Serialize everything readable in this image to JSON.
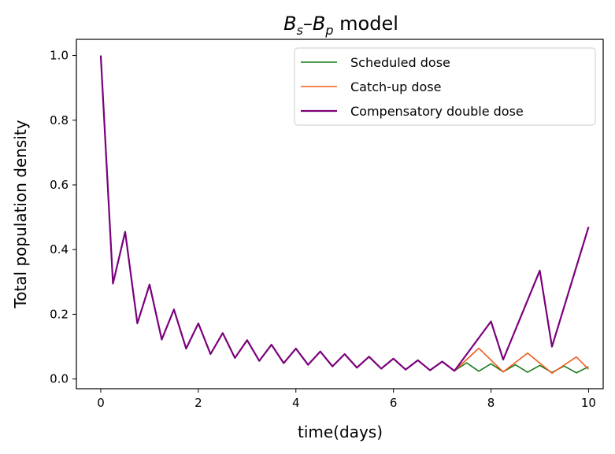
{
  "chart_data": {
    "type": "line",
    "title": {
      "b1": "B",
      "s1": "s",
      "dash": "–",
      "b2": "B",
      "s2": "p",
      "rest": " model"
    },
    "xlabel": "time(days)",
    "ylabel": "Total population density",
    "xlim": [
      -0.5,
      10.3
    ],
    "ylim": [
      -0.03,
      1.05
    ],
    "xticks": [
      0,
      2,
      4,
      6,
      8,
      10
    ],
    "yticks": [
      0.0,
      0.2,
      0.4,
      0.6,
      0.8,
      1.0
    ],
    "xtick_labels": [
      "0",
      "2",
      "4",
      "6",
      "8",
      "10"
    ],
    "ytick_labels": [
      "0.0",
      "0.2",
      "0.4",
      "0.6",
      "0.8",
      "1.0"
    ],
    "grid": false,
    "legend_position": "top-right",
    "series": [
      {
        "name": "Scheduled dose",
        "color": "#1a7a1a",
        "x": [
          0,
          0.25,
          0.5,
          0.75,
          1.0,
          1.25,
          1.5,
          1.75,
          2.0,
          2.25,
          2.5,
          2.75,
          3.0,
          3.25,
          3.5,
          3.75,
          4.0,
          4.25,
          4.5,
          4.75,
          5.0,
          5.25,
          5.5,
          5.75,
          6.0,
          6.25,
          6.5,
          6.75,
          7.0,
          7.25,
          7.5,
          7.75,
          8.0,
          8.25,
          8.5,
          8.75,
          9.0,
          9.25,
          9.5,
          9.75,
          10.0
        ],
        "y": [
          1.0,
          0.295,
          0.455,
          0.172,
          0.292,
          0.122,
          0.215,
          0.094,
          0.172,
          0.077,
          0.142,
          0.065,
          0.12,
          0.056,
          0.106,
          0.049,
          0.094,
          0.044,
          0.085,
          0.039,
          0.077,
          0.035,
          0.069,
          0.032,
          0.063,
          0.029,
          0.058,
          0.027,
          0.054,
          0.025,
          0.05,
          0.024,
          0.047,
          0.022,
          0.044,
          0.021,
          0.042,
          0.02,
          0.04,
          0.019,
          0.038
        ]
      },
      {
        "name": "Catch-up dose",
        "color": "#f05a1e",
        "x": [
          7.25,
          7.75,
          8.25,
          8.75,
          9.25,
          9.75,
          10.0
        ],
        "y": [
          0.025,
          0.095,
          0.022,
          0.08,
          0.018,
          0.068,
          0.03
        ]
      },
      {
        "name": "Compensatory double dose",
        "color": "#7b007b",
        "x": [
          0,
          0.25,
          0.5,
          0.75,
          1.0,
          1.25,
          1.5,
          1.75,
          2.0,
          2.25,
          2.5,
          2.75,
          3.0,
          3.25,
          3.5,
          3.75,
          4.0,
          4.25,
          4.5,
          4.75,
          5.0,
          5.25,
          5.5,
          5.75,
          6.0,
          6.25,
          6.5,
          6.75,
          7.0,
          7.25,
          8.0,
          8.25,
          9.0,
          9.25,
          10.0
        ],
        "y": [
          1.0,
          0.295,
          0.455,
          0.172,
          0.292,
          0.122,
          0.215,
          0.094,
          0.172,
          0.077,
          0.142,
          0.065,
          0.12,
          0.056,
          0.106,
          0.049,
          0.094,
          0.044,
          0.085,
          0.039,
          0.077,
          0.035,
          0.069,
          0.032,
          0.063,
          0.029,
          0.058,
          0.027,
          0.054,
          0.025,
          0.178,
          0.06,
          0.335,
          0.1,
          0.47
        ]
      }
    ]
  }
}
